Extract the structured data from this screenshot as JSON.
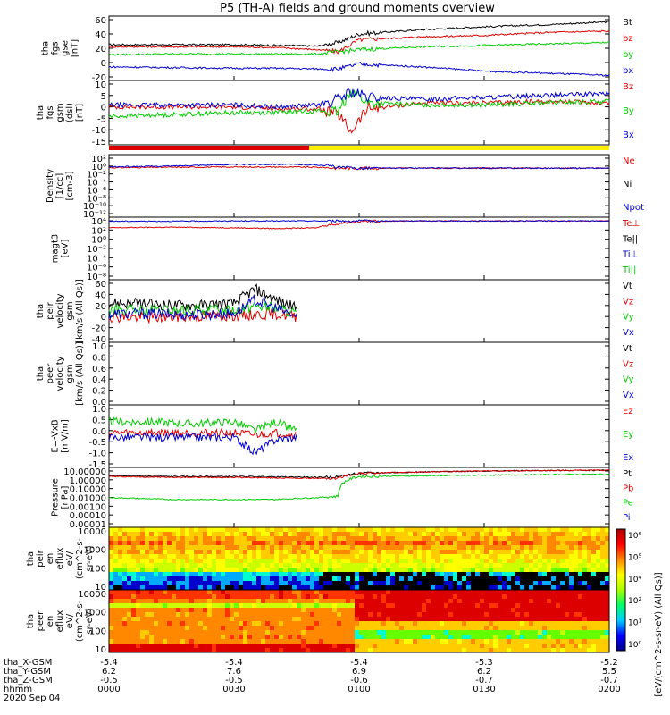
{
  "title": "P5 (TH-A) fields and ground moments overview",
  "colors": {
    "black": "#000000",
    "red": "#e00000",
    "green": "#00cc00",
    "blue": "#0000cc",
    "yellow": "#ffee00"
  },
  "chart_data": [
    {
      "type": "line",
      "panel": "fgs_gse",
      "ylabel": [
        "tha",
        "fgs",
        "gse",
        "[nT]"
      ],
      "yticks": [
        "60",
        "40",
        "20",
        "0",
        "-20"
      ],
      "ylim": [
        -20,
        60
      ],
      "legend": [
        {
          "name": "Bt",
          "color": "black"
        },
        {
          "name": "bz",
          "color": "red"
        },
        {
          "name": "by",
          "color": "green"
        },
        {
          "name": "bx",
          "color": "blue"
        }
      ],
      "x": [
        0,
        15,
        30,
        40,
        50,
        55,
        60,
        75,
        90,
        105,
        120
      ],
      "series": [
        {
          "name": "Bt",
          "values": [
            25,
            25,
            25,
            24,
            23,
            28,
            40,
            46,
            50,
            53,
            57
          ]
        },
        {
          "name": "bz",
          "values": [
            22,
            22,
            22,
            21,
            18,
            15,
            32,
            36,
            38,
            42,
            44
          ]
        },
        {
          "name": "by",
          "values": [
            11,
            12,
            12,
            12,
            12,
            15,
            18,
            22,
            24,
            26,
            28
          ]
        },
        {
          "name": "bx",
          "values": [
            -6,
            -7,
            -8,
            -8,
            -9,
            -9,
            -2,
            -6,
            -12,
            -15,
            -18
          ]
        }
      ]
    },
    {
      "type": "line",
      "panel": "fgs_gsm",
      "ylabel": [
        "tha",
        "fgs",
        "gsm",
        "(dsl)",
        "[nT]"
      ],
      "yticks": [
        "10",
        "5",
        "0",
        "-5",
        "-10",
        "-15"
      ],
      "ylim": [
        -17,
        13
      ],
      "legend": [
        {
          "name": "Bz",
          "color": "red"
        },
        {
          "name": "By",
          "color": "green"
        },
        {
          "name": "Bx",
          "color": "blue"
        }
      ],
      "x": [
        0,
        15,
        30,
        40,
        50,
        55,
        58,
        62,
        75,
        90,
        105,
        120
      ],
      "series": [
        {
          "name": "Bz",
          "values": [
            1,
            1,
            1,
            0,
            0,
            -3,
            -12,
            0,
            3,
            3,
            4,
            3
          ]
        },
        {
          "name": "By",
          "values": [
            -4,
            -3,
            -2,
            -2,
            -1,
            -2,
            10,
            3,
            2,
            2,
            3,
            4
          ]
        },
        {
          "name": "Bx",
          "values": [
            2,
            2,
            2,
            1,
            2,
            5,
            9,
            6,
            5,
            6,
            7,
            8
          ]
        }
      ]
    },
    {
      "type": "line",
      "panel": "density",
      "ylabel": [
        "Density",
        "[1/cc]",
        "[cm-3]"
      ],
      "yticks": [
        "10²",
        "10⁰",
        "10⁻²",
        "10⁻⁴",
        "10⁻⁶",
        "10⁻⁸",
        "10⁻¹⁰",
        "10⁻¹²"
      ],
      "legend": [
        {
          "name": "Ne",
          "color": "red"
        },
        {
          "name": "Ni",
          "color": "black"
        },
        {
          "name": "Npot",
          "color": "blue"
        }
      ],
      "x": [
        0,
        15,
        30,
        40,
        50,
        55,
        60,
        75,
        90,
        105,
        120
      ],
      "series": [
        {
          "name": "Ne",
          "values": [
            0.4,
            0.5,
            0.6,
            0.6,
            0.5,
            0.3,
            0.3,
            0.3,
            0.3,
            0.3,
            0.3
          ]
        },
        {
          "name": "Npot",
          "values": [
            0.6,
            1.0,
            2.5,
            3.0,
            2.0,
            0.5,
            0.3,
            0.3,
            0.3,
            0.3,
            0.3
          ]
        }
      ]
    },
    {
      "type": "line",
      "panel": "temperature",
      "ylabel": [
        "magt3",
        "[eV]"
      ],
      "yticks": [
        "10⁴",
        "10²",
        "10⁰",
        "10⁻²",
        "10⁻⁴",
        "10⁻⁶",
        "10⁻⁸"
      ],
      "legend": [
        {
          "name": "Te⊥",
          "color": "red"
        },
        {
          "name": "Te||",
          "color": "black"
        },
        {
          "name": "Ti⊥",
          "color": "blue"
        },
        {
          "name": "Ti||",
          "color": "green"
        }
      ],
      "x": [
        0,
        15,
        30,
        40,
        50,
        55,
        60,
        75,
        90,
        105,
        120
      ],
      "series": [
        {
          "name": "Te⊥",
          "values": [
            300,
            400,
            300,
            200,
            300,
            2000,
            8000,
            9000,
            9000,
            9000,
            9000
          ]
        },
        {
          "name": "Ti⊥",
          "values": [
            8000,
            8000,
            9000,
            9000,
            9000,
            9000,
            9000,
            9000,
            9000,
            9000,
            9000
          ]
        }
      ]
    },
    {
      "type": "line",
      "panel": "peir_velocity",
      "ylabel": [
        "tha",
        "peir",
        "velocity",
        "gsm",
        "[km/s (All Qs)]"
      ],
      "yticks": [
        "60",
        "40",
        "20",
        "0",
        "-20",
        "-40"
      ],
      "ylim": [
        -40,
        60
      ],
      "legend": [
        {
          "name": "Vt",
          "color": "black"
        },
        {
          "name": "Vz",
          "color": "red"
        },
        {
          "name": "Vy",
          "color": "green"
        },
        {
          "name": "Vx",
          "color": "blue"
        }
      ],
      "x": [
        0,
        10,
        20,
        30,
        35,
        40,
        45
      ],
      "series": [
        {
          "name": "Vt",
          "values": [
            25,
            22,
            20,
            24,
            50,
            30,
            15
          ]
        },
        {
          "name": "Vz",
          "values": [
            0,
            -2,
            0,
            2,
            3,
            5,
            0
          ]
        },
        {
          "name": "Vy",
          "values": [
            12,
            10,
            11,
            12,
            20,
            15,
            5
          ]
        },
        {
          "name": "Vx",
          "values": [
            5,
            5,
            3,
            6,
            30,
            15,
            0
          ]
        }
      ]
    },
    {
      "type": "line",
      "panel": "peer_velocity",
      "ylabel": [
        "tha",
        "peer",
        "velocity",
        "gsm",
        "[km/s (All Qs)]"
      ],
      "yticks": [
        "1.0",
        "0.8",
        "0.6",
        "0.4",
        "0.2",
        "0.0"
      ],
      "legend": [
        {
          "name": "Vt",
          "color": "black"
        },
        {
          "name": "Vz",
          "color": "red"
        },
        {
          "name": "Vy",
          "color": "green"
        },
        {
          "name": "Vx",
          "color": "blue"
        }
      ],
      "series": []
    },
    {
      "type": "line",
      "panel": "efield",
      "ylabel": [
        "E=-VxB",
        "[mV/m]"
      ],
      "yticks": [
        "1.0",
        "0.5",
        "0.0",
        "-0.5",
        "-1.0",
        "-1.5"
      ],
      "ylim": [
        -1.5,
        1.0
      ],
      "legend": [
        {
          "name": "Ez",
          "color": "red"
        },
        {
          "name": "Ey",
          "color": "green"
        },
        {
          "name": "Ex",
          "color": "blue"
        }
      ],
      "x": [
        0,
        10,
        20,
        30,
        35,
        40,
        45
      ],
      "series": [
        {
          "name": "Ez",
          "values": [
            -0.1,
            -0.1,
            -0.1,
            -0.1,
            -0.2,
            -0.1,
            -0.2
          ]
        },
        {
          "name": "Ey",
          "values": [
            0.4,
            0.4,
            0.3,
            0.4,
            0.0,
            0.4,
            0.0
          ]
        },
        {
          "name": "Ex",
          "values": [
            -0.3,
            -0.3,
            -0.3,
            -0.3,
            -1.0,
            -0.4,
            -0.3
          ]
        }
      ]
    },
    {
      "type": "line",
      "panel": "pressure",
      "ylabel": [
        "Pressure",
        "[nPa]"
      ],
      "yticks": [
        "10.00000",
        "1.00000",
        "0.10000",
        "0.01000",
        "0.00100",
        "0.00010",
        "0.00001"
      ],
      "legend": [
        {
          "name": "Pt",
          "color": "black"
        },
        {
          "name": "Pb",
          "color": "red"
        },
        {
          "name": "Pe",
          "color": "green"
        },
        {
          "name": "Pi",
          "color": "blue"
        }
      ],
      "x": [
        0,
        15,
        30,
        40,
        50,
        55,
        60,
        75,
        90,
        105,
        120
      ],
      "series": [
        {
          "name": "Pt",
          "values": [
            0.35,
            0.3,
            0.3,
            0.28,
            0.25,
            0.3,
            0.6,
            0.8,
            1.0,
            1.1,
            1.2
          ]
        },
        {
          "name": "Pb",
          "values": [
            0.3,
            0.25,
            0.25,
            0.22,
            0.2,
            0.2,
            0.6,
            0.8,
            1.0,
            1.1,
            1.2
          ]
        },
        {
          "name": "Pe",
          "values": [
            0.003,
            0.002,
            0.002,
            0.002,
            0.003,
            0.004,
            0.3,
            0.35,
            0.4,
            0.45,
            0.5
          ]
        }
      ]
    },
    {
      "type": "heatmap",
      "panel": "peir_spectrogram",
      "ylabel": [
        "tha",
        "peir",
        "en",
        "eflux",
        "eV/",
        "(cm^2-s-",
        "sr-eV)"
      ],
      "yticks": [
        "10000",
        "1000",
        "100",
        "10"
      ]
    },
    {
      "type": "heatmap",
      "panel": "peer_spectrogram",
      "ylabel": [
        "tha",
        "peer",
        "en",
        "eflux",
        "eV/",
        "(cm^2-s-",
        "sr-eV)"
      ],
      "yticks": [
        "10000",
        "1000",
        "100",
        "10"
      ]
    }
  ],
  "colorbar": {
    "ticks": [
      "10⁶",
      "10⁵",
      "10⁴",
      "10²",
      "10¹",
      "10⁰"
    ],
    "label": "[eV/(cm^2-s-sr-eV) (All Qs)]"
  },
  "xaxis": {
    "ticks": [
      0,
      30,
      60,
      90,
      120
    ],
    "rows": [
      {
        "name": "tha_X-GSM",
        "values": [
          "-5.4",
          "-5.4",
          "-5.4",
          "-5.3",
          "-5.2"
        ]
      },
      {
        "name": "tha_Y-GSM",
        "values": [
          "6.2",
          "7.6",
          "6.9",
          "6.2",
          "5.5"
        ]
      },
      {
        "name": "tha_Z-GSM",
        "values": [
          "-0.5",
          "-0.5",
          "-0.6",
          "-0.7",
          "-0.7"
        ]
      },
      {
        "name": "hhmm",
        "values": [
          "0000",
          "0030",
          "0100",
          "0130",
          "0200"
        ]
      }
    ],
    "date": "2020 Sep 04"
  }
}
